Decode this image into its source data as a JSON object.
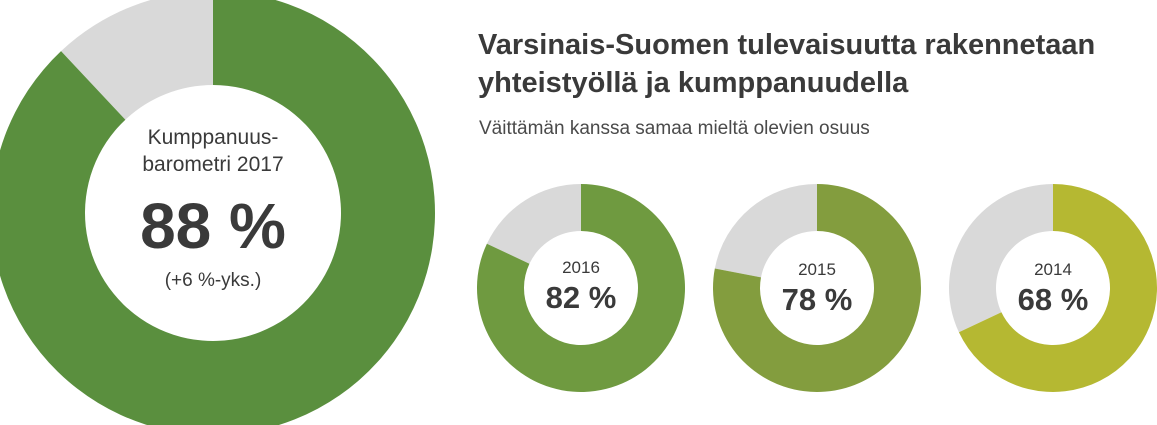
{
  "title": "Varsinais-Suomen tulevaisuutta rakennetaan yhteistyöllä ja kumppanuudella",
  "subtitle": "Väittämän kanssa samaa mieltä olevien osuus",
  "colors": {
    "remainder": "#d9d9d9",
    "text_dark": "#3a3a3a"
  },
  "chart_data": [
    {
      "type": "pie",
      "variant": "donut",
      "label_line1": "Kumppanuus-",
      "label_line2": "barometri 2017",
      "value": 88,
      "display_value": "88 %",
      "change": "(+6 %-yks.)",
      "color": "#5a8f3e"
    },
    {
      "type": "pie",
      "variant": "donut",
      "year": "2016",
      "value": 82,
      "display_value": "82 %",
      "color": "#6f9a40"
    },
    {
      "type": "pie",
      "variant": "donut",
      "year": "2015",
      "value": 78,
      "display_value": "78 %",
      "color": "#839d3e"
    },
    {
      "type": "pie",
      "variant": "donut",
      "year": "2014",
      "value": 68,
      "display_value": "68 %",
      "color": "#b5b832"
    }
  ]
}
